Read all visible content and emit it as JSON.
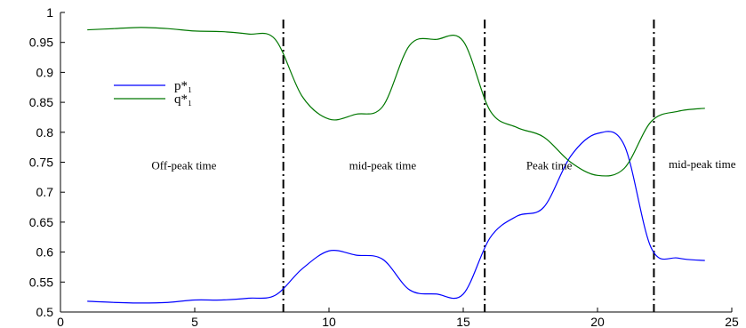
{
  "chart_data": {
    "type": "line",
    "title": "",
    "xlabel": "",
    "ylabel": "",
    "xlim": [
      0,
      25
    ],
    "ylim": [
      0.5,
      1.0
    ],
    "xticks": [
      0,
      5,
      10,
      15,
      20,
      25
    ],
    "yticks": [
      0.5,
      0.55,
      0.6,
      0.65,
      0.7,
      0.75,
      0.8,
      0.85,
      0.9,
      0.95,
      1.0
    ],
    "xtick_labels": [
      "0",
      "5",
      "10",
      "15",
      "20",
      "25"
    ],
    "ytick_labels": [
      "0.5",
      "0.55",
      "0.6",
      "0.65",
      "0.7",
      "0.75",
      "0.8",
      "0.85",
      "0.9",
      "0.95",
      "1"
    ],
    "grid": false,
    "legend_position": "upper-left",
    "series": [
      {
        "name": "p*₁",
        "color": "#0000ff",
        "x": [
          1,
          2,
          3,
          4,
          5,
          6,
          7,
          8,
          9,
          10,
          11,
          12,
          13,
          14,
          15,
          16,
          17,
          18,
          19,
          20,
          21,
          22,
          23,
          24
        ],
        "y": [
          0.518,
          0.516,
          0.515,
          0.516,
          0.52,
          0.52,
          0.523,
          0.528,
          0.572,
          0.602,
          0.595,
          0.588,
          0.537,
          0.53,
          0.53,
          0.624,
          0.66,
          0.675,
          0.76,
          0.798,
          0.778,
          0.607,
          0.59,
          0.586
        ]
      },
      {
        "name": "q*₁",
        "color": "#007700",
        "x": [
          1,
          2,
          3,
          4,
          5,
          6,
          7,
          8,
          9,
          10,
          11,
          12,
          13,
          14,
          15,
          16,
          17,
          18,
          19,
          20,
          21,
          22,
          23,
          24
        ],
        "y": [
          0.971,
          0.973,
          0.975,
          0.973,
          0.969,
          0.968,
          0.964,
          0.955,
          0.86,
          0.822,
          0.83,
          0.843,
          0.945,
          0.955,
          0.952,
          0.836,
          0.808,
          0.792,
          0.75,
          0.728,
          0.74,
          0.818,
          0.835,
          0.84
        ]
      }
    ],
    "dividers_x": [
      8.3,
      15.8,
      22.1
    ],
    "annotations": [
      {
        "text": "Off-peak time",
        "x": 4.6,
        "y": 0.738
      },
      {
        "text": "mid-peak time",
        "x": 12.0,
        "y": 0.738
      },
      {
        "text": "Peak time",
        "x": 18.2,
        "y": 0.738
      },
      {
        "text": "mid-peak time",
        "x": 23.9,
        "y": 0.74
      }
    ]
  }
}
